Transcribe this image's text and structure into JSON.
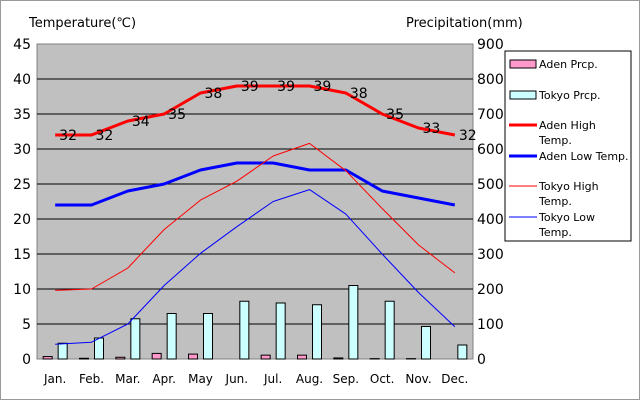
{
  "chart_data": {
    "type": "bar+line",
    "left_axis_label": "Temperature(℃)",
    "right_axis_label": "Precipitation(mm)",
    "categories": [
      "Jan.",
      "Feb.",
      "Mar.",
      "Apr.",
      "May",
      "Jun.",
      "Jul.",
      "Aug.",
      "Sep.",
      "Oct.",
      "Nov.",
      "Dec."
    ],
    "y_left_lim": [
      0,
      45
    ],
    "y_left_ticks": [
      0,
      5,
      10,
      15,
      20,
      25,
      30,
      35,
      40,
      45
    ],
    "y_right_lim": [
      0,
      900
    ],
    "y_right_ticks": [
      0,
      100,
      200,
      300,
      400,
      500,
      600,
      700,
      800,
      900
    ],
    "plot_background": "#c0c0c0",
    "grid": "horizontal",
    "legend_position": "right",
    "series": [
      {
        "name": "Aden Prcp.",
        "type": "bar",
        "axis": "right",
        "color": "#ff99cc",
        "values": [
          7,
          2,
          5,
          16,
          14,
          0,
          11,
          11,
          3,
          1,
          1,
          0
        ]
      },
      {
        "name": "Tokyo Prcp.",
        "type": "bar",
        "axis": "right",
        "color": "#ccffff",
        "values": [
          45,
          60,
          115,
          130,
          130,
          165,
          160,
          155,
          210,
          165,
          93,
          40
        ]
      },
      {
        "name": "Aden High Temp.",
        "type": "line",
        "axis": "left",
        "color": "#ff0000",
        "width": 3,
        "values": [
          32,
          32,
          34,
          35,
          38,
          39,
          39,
          39,
          38,
          35,
          33,
          32
        ],
        "labels": [
          "32",
          "32",
          "34",
          "35",
          "38",
          "39",
          "39",
          "39",
          "38",
          "35",
          "33",
          "32"
        ]
      },
      {
        "name": "Aden Low Temp.",
        "type": "line",
        "axis": "left",
        "color": "#0000ff",
        "width": 3,
        "values": [
          22,
          22,
          24,
          25,
          27,
          28,
          28,
          27,
          27,
          24,
          23,
          22
        ]
      },
      {
        "name": "Tokyo High Temp.",
        "type": "line",
        "axis": "left",
        "color": "#ff0000",
        "width": 1,
        "values": [
          9.8,
          10,
          13,
          18.5,
          22.7,
          25.4,
          29,
          30.8,
          26.9,
          21.5,
          16.3,
          12.3
        ]
      },
      {
        "name": "Tokyo Low Temp.",
        "type": "line",
        "axis": "left",
        "color": "#0000ff",
        "width": 1,
        "values": [
          2.1,
          2.4,
          5,
          10.5,
          15.1,
          18.9,
          22.5,
          24.2,
          20.7,
          15,
          9.5,
          4.6
        ]
      }
    ]
  }
}
